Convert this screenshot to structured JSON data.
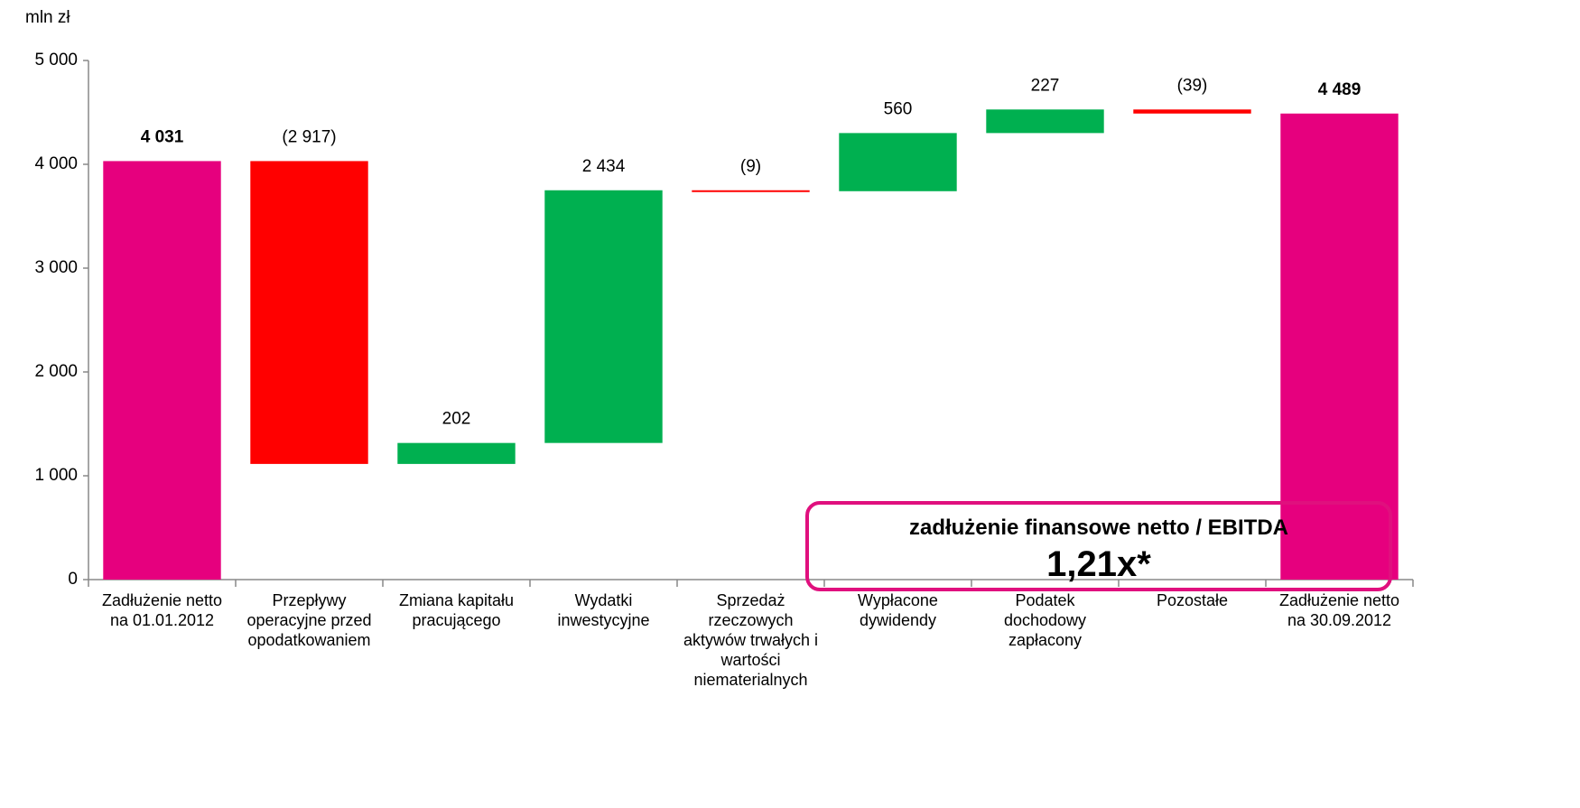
{
  "chart_data": {
    "type": "waterfall",
    "y_axis_label": "mln zł",
    "categories": [
      "Zadłużenie netto na 01.01.2012",
      "Przepływy operacyjne przed opodatkowaniem",
      "Zmiana kapitału pracującego",
      "Wydatki inwestycyjne",
      "Sprzedaż rzeczowych aktywów trwałych i wartości niematerialnych",
      "Wypłacone dywidendy",
      "Podatek dochodowy zapłacony",
      "Pozostałe",
      "Zadłużenie netto na 30.09.2012"
    ],
    "values": [
      4031,
      -2917,
      202,
      2434,
      -9,
      560,
      227,
      -39,
      4489
    ],
    "value_labels": [
      "4 031",
      "(2 917)",
      "202",
      "2 434",
      "(9)",
      "560",
      "227",
      "(39)",
      "4 489"
    ],
    "measure": [
      "total",
      "relative",
      "relative",
      "relative",
      "relative",
      "relative",
      "relative",
      "relative",
      "total"
    ],
    "colors": {
      "total": "#e6007e",
      "increase": "#00b050",
      "decrease": "#ff0000"
    },
    "ylim": [
      0,
      5000
    ],
    "yticks": [
      0,
      {
        "value": 1000,
        "label": "1 000"
      },
      {
        "value": 2000,
        "label": "2 000"
      },
      {
        "value": 3000,
        "label": "3 000"
      },
      {
        "value": 4000,
        "label": "4 000"
      },
      {
        "value": 5000,
        "label": "5 000"
      }
    ],
    "annotation": {
      "title": "zadłużenie finansowe netto / EBITDA",
      "value": "1,21x*"
    }
  }
}
